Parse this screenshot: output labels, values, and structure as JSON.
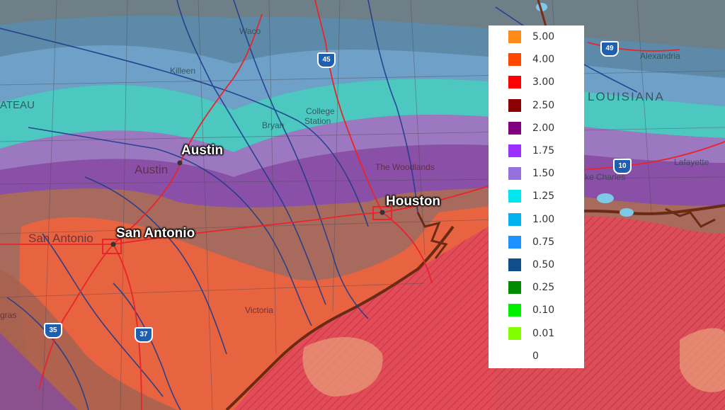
{
  "map": {
    "cities": [
      {
        "key": "austin",
        "label": "Austin"
      },
      {
        "key": "san_antonio",
        "label": "San Antonio"
      },
      {
        "key": "houston",
        "label": "Houston"
      }
    ],
    "basemap_labels": {
      "waco": "Waco",
      "killeen": "Killeen",
      "college_station": "College Station",
      "college": "College",
      "station": "Station",
      "bryan": "Bryan",
      "austin": "Austin",
      "the_woodlands": "The Woodlands",
      "san_antonio": "San Antonio",
      "victoria": "Victoria",
      "alexandria": "Alexandria",
      "louisiana": "LOUISIANA",
      "lafayette": "Lafayette",
      "lake_charles": "ke Charles",
      "plateau": "ATEAU",
      "gras": "gras"
    },
    "interstates": [
      "45",
      "49",
      "10",
      "35",
      "37"
    ]
  },
  "legend": {
    "items": [
      {
        "label": "5.00",
        "color": "#ff8c1a"
      },
      {
        "label": "4.00",
        "color": "#ff4500"
      },
      {
        "label": "3.00",
        "color": "#ff0000"
      },
      {
        "label": "2.50",
        "color": "#8b0000"
      },
      {
        "label": "2.00",
        "color": "#800080"
      },
      {
        "label": "1.75",
        "color": "#9b30ff"
      },
      {
        "label": "1.50",
        "color": "#9370db"
      },
      {
        "label": "1.25",
        "color": "#00e5ee"
      },
      {
        "label": "1.00",
        "color": "#00b2ee"
      },
      {
        "label": "0.75",
        "color": "#1e90ff"
      },
      {
        "label": "0.50",
        "color": "#104e8b"
      },
      {
        "label": "0.25",
        "color": "#008b00"
      },
      {
        "label": "0.10",
        "color": "#00ee00"
      },
      {
        "label": "0.01",
        "color": "#7fff00"
      },
      {
        "label": "0",
        "color": "#ffffff"
      }
    ]
  }
}
